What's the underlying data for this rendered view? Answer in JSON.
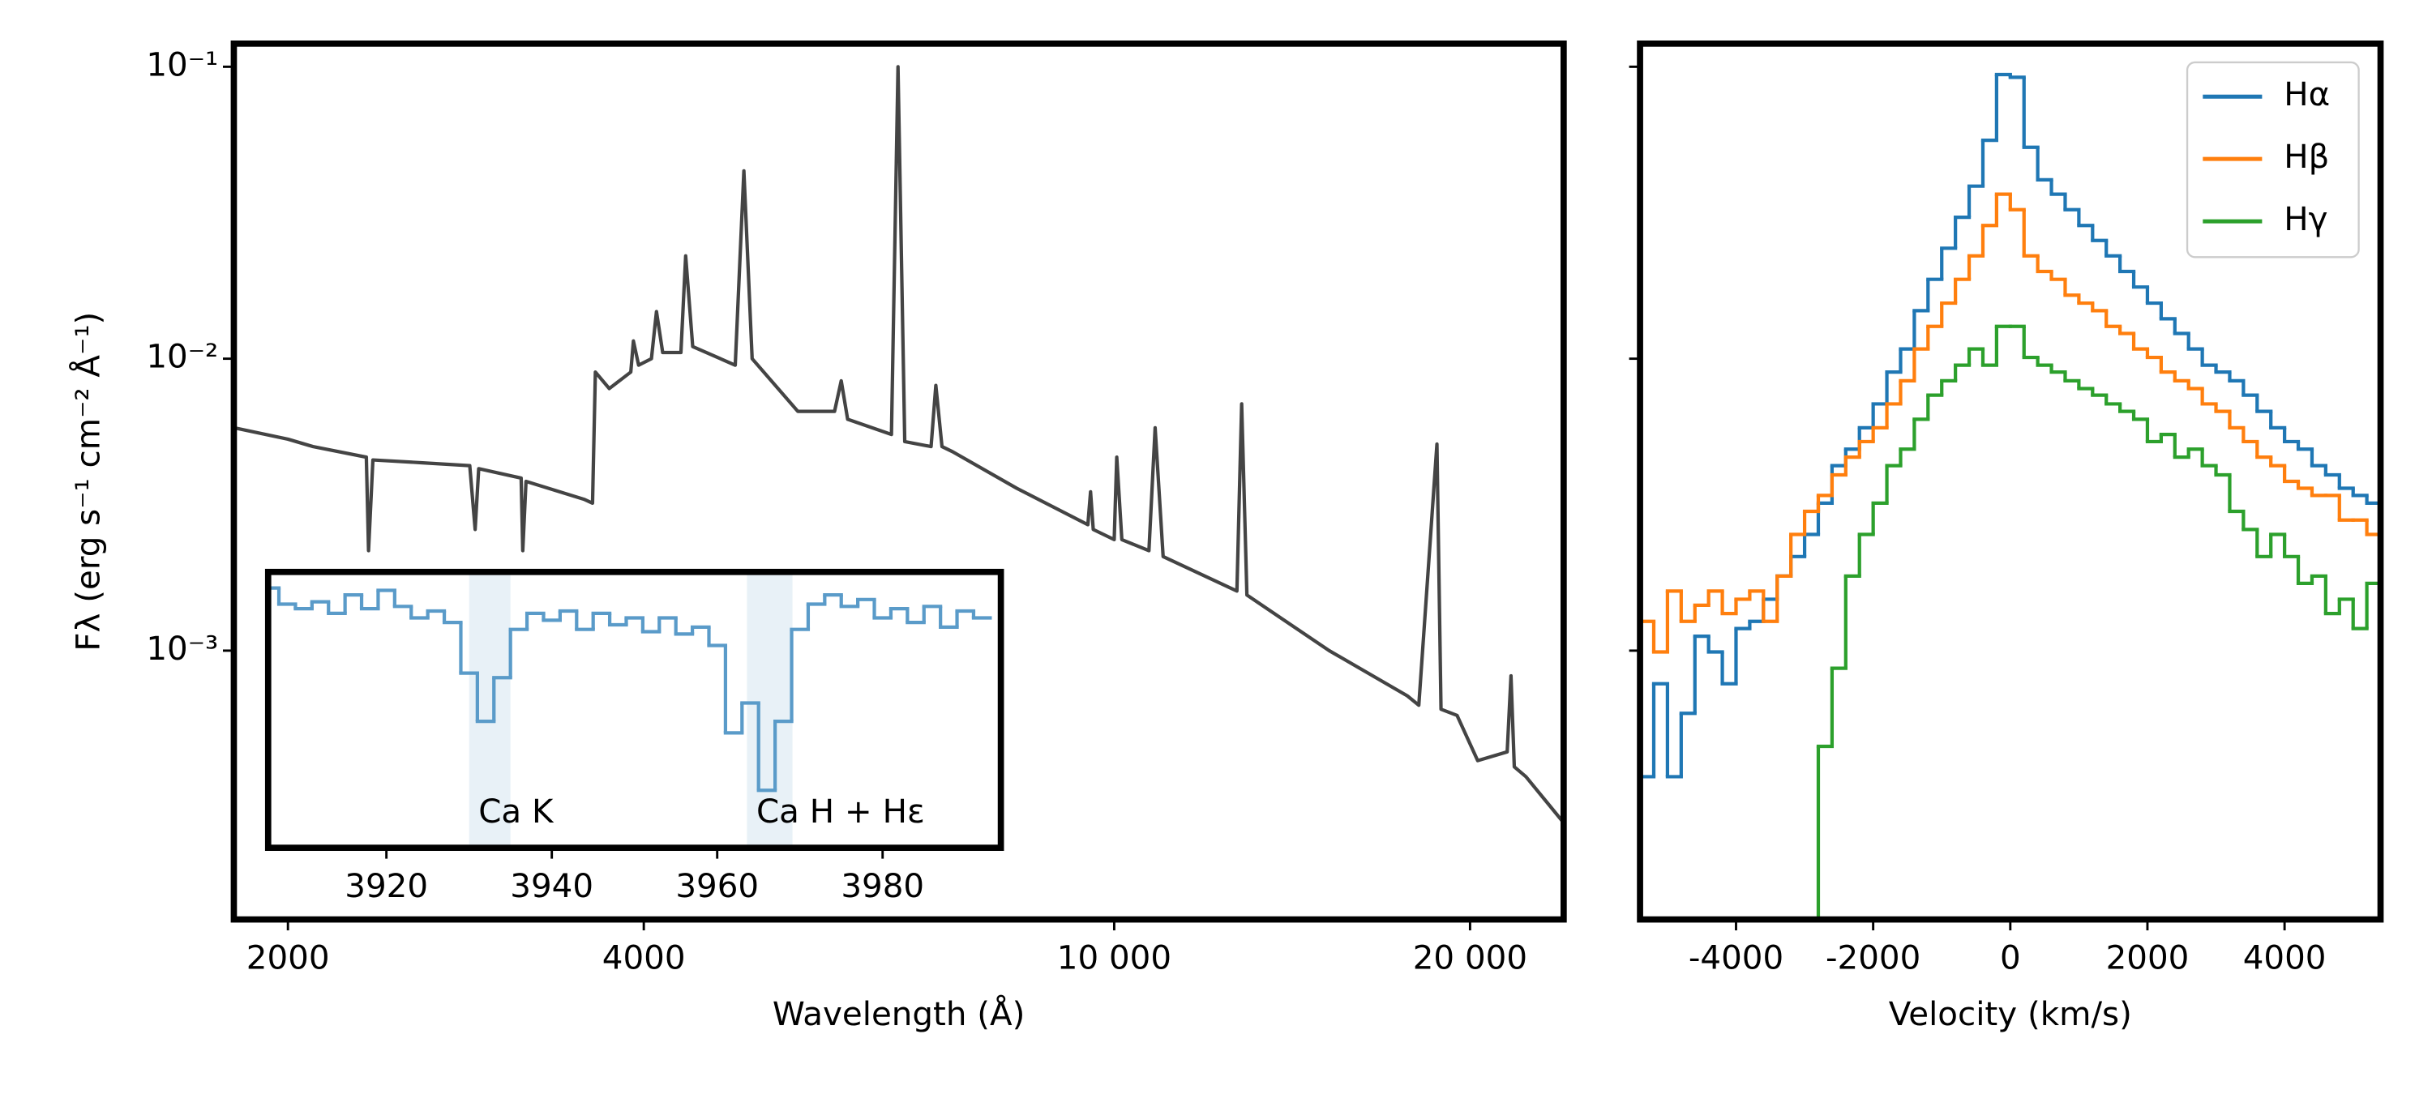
{
  "chart_data": [
    {
      "type": "line",
      "xscale": "log",
      "yscale": "log",
      "color": "#444444",
      "xlabel": "Wavelength (Å)",
      "ylabel": "Fλ (erg s⁻¹ cm⁻² Å⁻¹)",
      "xlim": [
        1800,
        24000
      ],
      "ylim": [
        0.00012,
        0.12
      ],
      "xticks": [
        2000,
        4000,
        {
          "value": 10000,
          "label": "10 000"
        },
        {
          "value": 20000,
          "label": "20 000"
        }
      ],
      "yticks": [
        {
          "value": 0.1,
          "label": "10⁻¹"
        },
        {
          "value": 0.01,
          "label": "10⁻²"
        },
        {
          "value": 0.001,
          "label": "10⁻³"
        }
      ],
      "x": [
        1800,
        2000,
        2100,
        2330,
        2340,
        2360,
        2600,
        2850,
        2880,
        2900,
        3150,
        3160,
        3180,
        3560,
        3620,
        3640,
        3740,
        3900,
        3920,
        3960,
        4060,
        4100,
        4150,
        4300,
        4340,
        4400,
        4780,
        4861,
        4940,
        5400,
        5800,
        5876,
        5950,
        6480,
        6563,
        6650,
        7000,
        7065,
        7150,
        7300,
        8270,
        9500,
        9550,
        9600,
        10000,
        10050,
        10150,
        10700,
        10830,
        11000,
        12700,
        12818,
        12950,
        15200,
        17700,
        18100,
        18751,
        18900,
        19500,
        20300,
        21500,
        21660,
        21800,
        22300,
        23950
      ],
      "values": [
        0.0058,
        0.0053,
        0.005,
        0.0046,
        0.0022,
        0.0045,
        0.0044,
        0.0043,
        0.0026,
        0.0042,
        0.0039,
        0.0022,
        0.0038,
        0.0033,
        0.0032,
        0.009,
        0.0079,
        0.009,
        0.0115,
        0.0095,
        0.01,
        0.0145,
        0.0105,
        0.0105,
        0.0225,
        0.011,
        0.0095,
        0.044,
        0.01,
        0.0066,
        0.0066,
        0.0084,
        0.0062,
        0.0055,
        0.1,
        0.0052,
        0.005,
        0.0081,
        0.005,
        0.0048,
        0.0036,
        0.0027,
        0.0035,
        0.0026,
        0.0024,
        0.0046,
        0.0024,
        0.0022,
        0.0058,
        0.0021,
        0.0016,
        0.007,
        0.00155,
        0.001,
        0.0007,
        0.00065,
        0.0051,
        0.00063,
        0.0006,
        0.00042,
        0.00045,
        0.00082,
        0.0004,
        0.00037,
        0.00026
      ]
    },
    {
      "type": "step",
      "color": "#5a9bc9",
      "xlim": [
        3905.7,
        3994.3
      ],
      "ylim": [
        0,
        1.2
      ],
      "xticks": [
        3920,
        3940,
        3960,
        3980
      ],
      "regions": [
        {
          "label": "Ca K",
          "range": [
            3930,
            3935
          ]
        },
        {
          "label": "Ca H + Hε",
          "range": [
            3963.6,
            3969.1
          ]
        }
      ],
      "x": [
        3906,
        3908,
        3910,
        3912,
        3914,
        3916,
        3918,
        3920,
        3922,
        3924,
        3926,
        3928,
        3930,
        3932,
        3934,
        3936,
        3938,
        3940,
        3942,
        3944,
        3946,
        3948,
        3950,
        3952,
        3954,
        3956,
        3958,
        3960,
        3962,
        3964,
        3966,
        3968,
        3970,
        3972,
        3974,
        3976,
        3978,
        3980,
        3982,
        3984,
        3986,
        3988,
        3990,
        3992
      ],
      "values": [
        1.13,
        1.06,
        1.04,
        1.07,
        1.02,
        1.1,
        1.04,
        1.12,
        1.05,
        1.0,
        1.03,
        0.98,
        0.76,
        0.55,
        0.74,
        0.95,
        1.02,
        0.99,
        1.03,
        0.95,
        1.02,
        0.97,
        1.0,
        0.94,
        1.0,
        0.93,
        0.96,
        0.88,
        0.5,
        0.63,
        0.25,
        0.55,
        0.95,
        1.06,
        1.1,
        1.05,
        1.08,
        1.0,
        1.04,
        0.98,
        1.05,
        0.96,
        1.03,
        1.0
      ]
    },
    {
      "type": "step",
      "yscale": "log",
      "xlabel": "Velocity (km/s)",
      "legend": "upper right",
      "xlim": [
        -5400,
        5400
      ],
      "ylim": [
        0.00012,
        0.12
      ],
      "xticks": [
        -4000,
        -2000,
        0,
        2000,
        4000
      ],
      "yticks": [
        0.1,
        0.01,
        0.001
      ],
      "x": [
        -5300,
        -5100,
        -4900,
        -4700,
        -4500,
        -4300,
        -4100,
        -3900,
        -3700,
        -3500,
        -3300,
        -3100,
        -2900,
        -2700,
        -2500,
        -2300,
        -2100,
        -1900,
        -1700,
        -1500,
        -1300,
        -1100,
        -900,
        -700,
        -500,
        -300,
        -100,
        100,
        300,
        500,
        700,
        900,
        1100,
        1300,
        1500,
        1700,
        1900,
        2100,
        2300,
        2500,
        2700,
        2900,
        3100,
        3300,
        3500,
        3700,
        3900,
        4100,
        4300,
        4500,
        4700,
        4900,
        5100,
        5300
      ],
      "series": [
        {
          "name": "Hα",
          "color": "#1f77b4",
          "values": [
            0.00037,
            0.00077,
            0.00037,
            0.00061,
            0.00112,
            0.00099,
            0.00077,
            0.00119,
            0.00126,
            0.0015,
            0.0018,
            0.0021,
            0.0025,
            0.0032,
            0.0043,
            0.0049,
            0.0058,
            0.007,
            0.009,
            0.0108,
            0.0146,
            0.0187,
            0.0239,
            0.0305,
            0.039,
            0.056,
            0.094,
            0.092,
            0.053,
            0.041,
            0.0366,
            0.0324,
            0.0286,
            0.0254,
            0.0225,
            0.0199,
            0.0176,
            0.0155,
            0.0137,
            0.0122,
            0.0108,
            0.0095,
            0.009,
            0.0084,
            0.0075,
            0.0066,
            0.0058,
            0.0052,
            0.0049,
            0.0043,
            0.004,
            0.0036,
            0.0034,
            0.0032
          ]
        },
        {
          "name": "Hβ",
          "color": "#ff7f0e",
          "values": [
            0.00126,
            0.00099,
            0.0016,
            0.00126,
            0.00143,
            0.0016,
            0.00134,
            0.0015,
            0.0016,
            0.00126,
            0.0018,
            0.0025,
            0.003,
            0.0034,
            0.004,
            0.0046,
            0.0052,
            0.0058,
            0.007,
            0.0084,
            0.0108,
            0.0129,
            0.0155,
            0.0187,
            0.0225,
            0.0286,
            0.0366,
            0.0324,
            0.0225,
            0.0199,
            0.0187,
            0.0165,
            0.0155,
            0.0146,
            0.0129,
            0.0122,
            0.0108,
            0.0101,
            0.009,
            0.0084,
            0.0079,
            0.007,
            0.0066,
            0.0058,
            0.0052,
            0.0046,
            0.0043,
            0.0038,
            0.0036,
            0.0034,
            0.0034,
            0.0028,
            0.0028,
            0.0025
          ]
        },
        {
          "name": "Hγ",
          "color": "#2ca02c",
          "values": [
            null,
            null,
            null,
            null,
            null,
            null,
            null,
            null,
            null,
            null,
            null,
            null,
            0.0001,
            0.00047,
            0.00087,
            0.0018,
            0.0025,
            0.0032,
            0.0043,
            0.0049,
            0.0062,
            0.0075,
            0.0084,
            0.0095,
            0.0108,
            0.0095,
            0.0129,
            0.0129,
            0.0101,
            0.0095,
            0.009,
            0.0084,
            0.0079,
            0.0075,
            0.007,
            0.0066,
            0.0062,
            0.0052,
            0.0055,
            0.0046,
            0.0049,
            0.0043,
            0.004,
            0.003,
            0.0026,
            0.0021,
            0.0025,
            0.0021,
            0.0017,
            0.0018,
            0.00134,
            0.0015,
            0.00119,
            0.0017
          ]
        }
      ]
    }
  ]
}
